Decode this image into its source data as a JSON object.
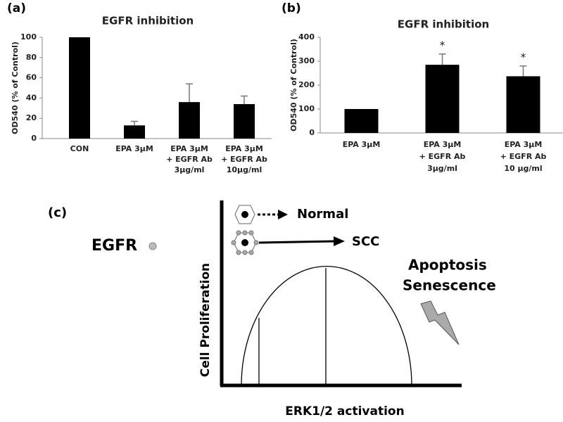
{
  "chart_data": [
    {
      "type": "bar",
      "label": "(a)",
      "title": "EGFR inhibition",
      "y_label": "OD540 (% of Control)",
      "categories": [
        [
          "CON"
        ],
        [
          "EPA 3μM"
        ],
        [
          "EPA 3μM",
          "+ EGFR Ab",
          "3μg/ml"
        ],
        [
          "EPA 3μM",
          "+ EGFR Ab",
          "10μg/ml"
        ]
      ],
      "values": [
        100,
        13,
        36,
        34
      ],
      "errors": [
        null,
        4,
        18,
        8
      ],
      "color": "#000000",
      "ylim": [
        0,
        100
      ],
      "yticks": [
        0,
        20,
        40,
        60,
        80,
        100
      ]
    },
    {
      "type": "bar",
      "label": "(b)",
      "title": "EGFR inhibition",
      "y_label": "OD540 (% of Control)",
      "categories": [
        [
          "EPA 3μM"
        ],
        [
          "EPA 3μM",
          "+ EGFR Ab",
          "3μg/ml"
        ],
        [
          "EPA 3μM",
          "+ EGFR Ab",
          "10 μg/ml"
        ]
      ],
      "values": [
        100,
        285,
        237
      ],
      "errors": [
        null,
        45,
        43
      ],
      "annotations": [
        null,
        "*",
        "*"
      ],
      "color": "#000000",
      "ylim": [
        0,
        400
      ],
      "yticks": [
        0,
        100,
        200,
        300,
        400
      ]
    }
  ],
  "diagram": {
    "label": "(c)",
    "legend_label": "EGFR",
    "y_axis": "Cell Proliferation",
    "x_axis": "ERK1/2 activation",
    "cells": [
      "Normal",
      "SCC"
    ],
    "outcomes": [
      "Apoptosis",
      "Senescence"
    ]
  }
}
